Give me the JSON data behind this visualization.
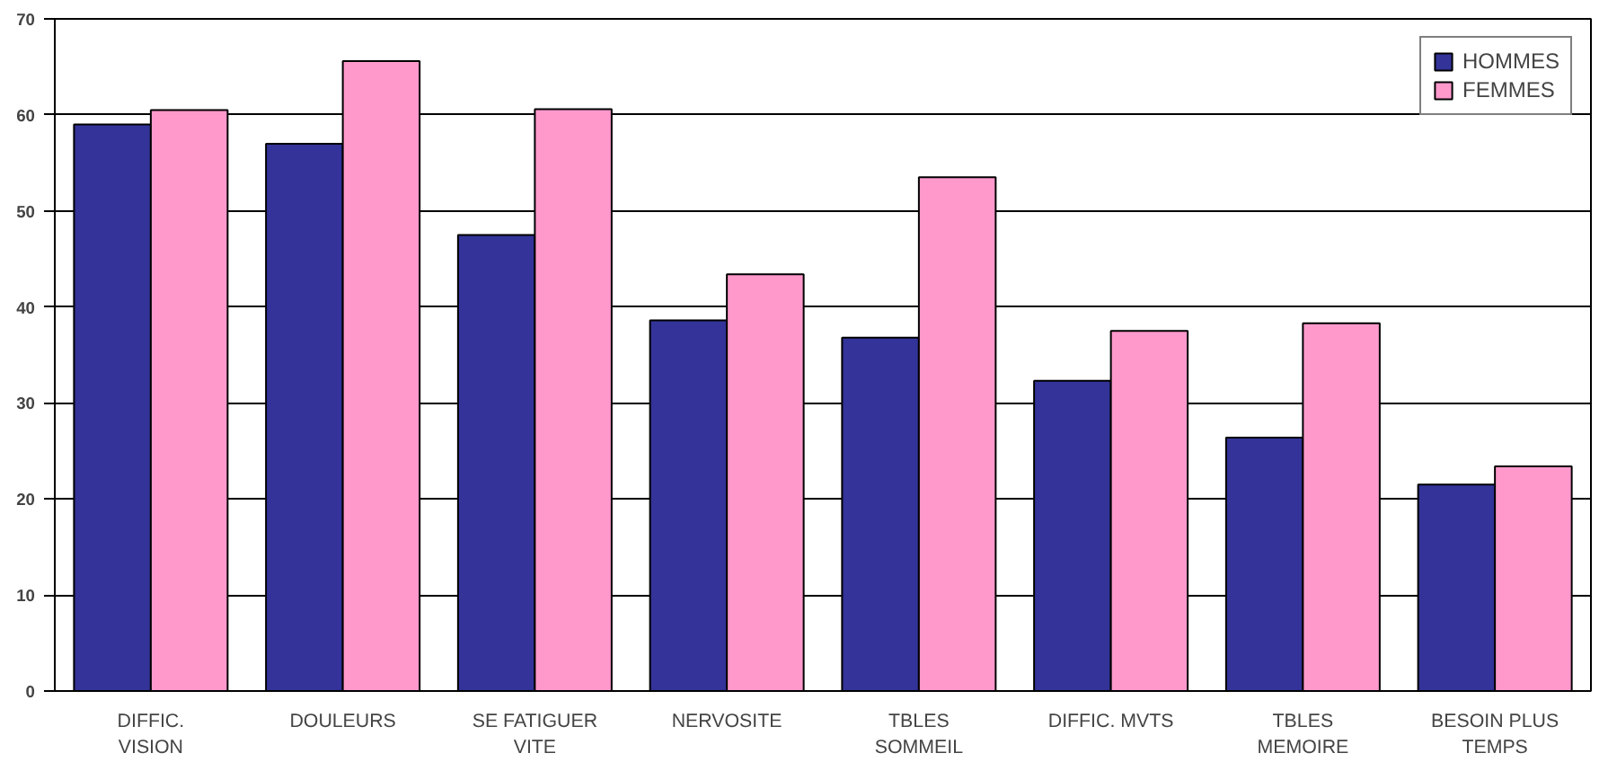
{
  "chart_data": {
    "type": "bar",
    "categories": [
      "DIFFIC.\nVISION",
      "DOULEURS",
      "SE FATIGUER\nVITE",
      "NERVOSITE",
      "TBLES\nSOMMEIL",
      "DIFFIC. MVTS",
      "TBLES\nMEMOIRE",
      "BESOIN PLUS\nTEMPS"
    ],
    "series": [
      {
        "name": "HOMMES",
        "color": "#333399",
        "values": [
          59,
          57,
          47.5,
          38.6,
          36.8,
          32.3,
          26.4,
          21.5
        ]
      },
      {
        "name": "FEMMES",
        "color": "#ff99cc",
        "values": [
          60.5,
          65.6,
          60.6,
          43.4,
          53.5,
          37.5,
          38.3,
          23.4
        ]
      }
    ],
    "ylim": [
      0,
      70
    ],
    "yticks": [
      0,
      10,
      20,
      30,
      40,
      50,
      60,
      70
    ],
    "grid": "y",
    "legend": "top right"
  }
}
